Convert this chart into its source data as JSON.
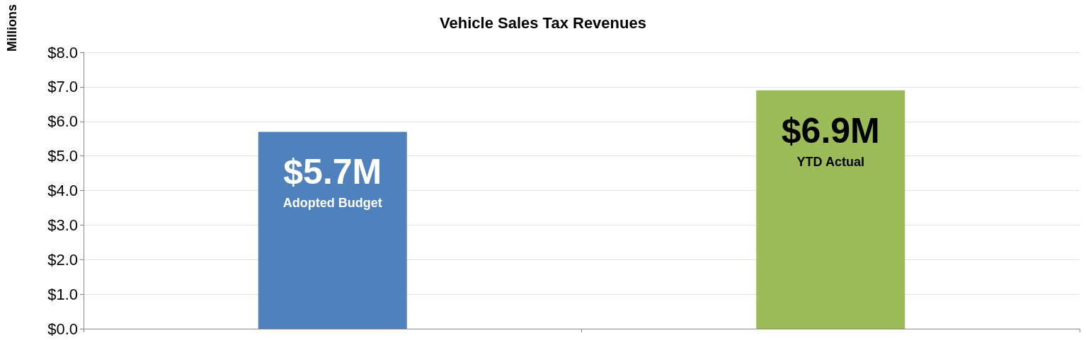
{
  "chart_data": {
    "type": "bar",
    "title": "Vehicle Sales Tax Revenues",
    "ylabel": "Millions",
    "categories": [
      "Adopted Budget",
      "YTD Actual"
    ],
    "values": [
      5.7,
      6.9
    ],
    "colors": [
      "#4f81bd",
      "#9bbb59"
    ],
    "value_labels": [
      "$5.7M",
      "$6.9M"
    ],
    "ylim": [
      0,
      8
    ],
    "yticks": [
      {
        "value": 0,
        "label": "$0.0"
      },
      {
        "value": 1,
        "label": "$1.0"
      },
      {
        "value": 2,
        "label": "$2.0"
      },
      {
        "value": 3,
        "label": "$3.0"
      },
      {
        "value": 4,
        "label": "$4.0"
      },
      {
        "value": 5,
        "label": "$5.0"
      },
      {
        "value": 6,
        "label": "$6.0"
      },
      {
        "value": 7,
        "label": "$7.0"
      },
      {
        "value": 8,
        "label": "$8.0"
      }
    ],
    "grid": "y"
  }
}
